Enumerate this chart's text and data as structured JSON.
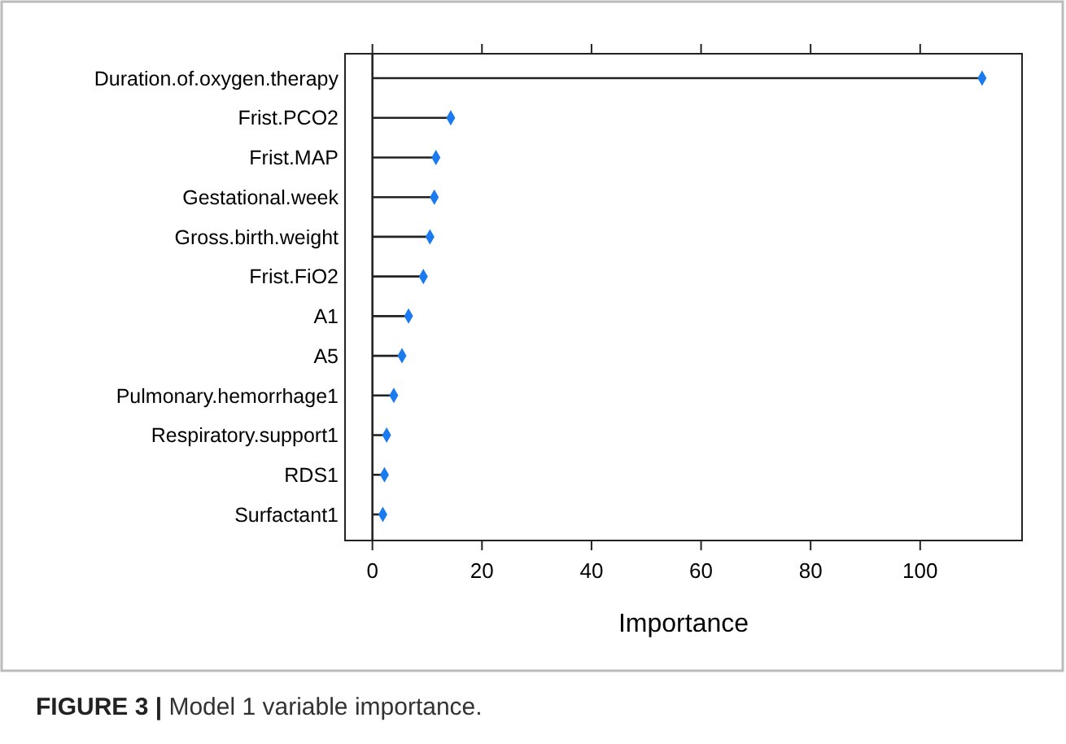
{
  "chart_data": {
    "type": "lollipop",
    "orientation": "horizontal",
    "xlabel": "Importance",
    "categories": [
      "Duration.of.oxygen.therapy",
      "Frist.PCO2",
      "Frist.MAP",
      "Gestational.week",
      "Gross.birth.weight",
      "Frist.FiO2",
      "A1",
      "A5",
      "Pulmonary.hemorrhage1",
      "Respiratory.support1",
      "RDS1",
      "Surfactant1"
    ],
    "values": [
      111.3,
      14.3,
      11.6,
      11.3,
      10.5,
      9.3,
      6.6,
      5.4,
      3.9,
      2.6,
      2.2,
      1.9
    ],
    "color": "#1a7af0",
    "marker": "diamond",
    "xlim": [
      -5,
      118.6
    ],
    "xticks": [
      0,
      20,
      40,
      60,
      80,
      100
    ],
    "annotations": [
      "FIGURE 3 | Model 1 variable importance."
    ]
  }
}
